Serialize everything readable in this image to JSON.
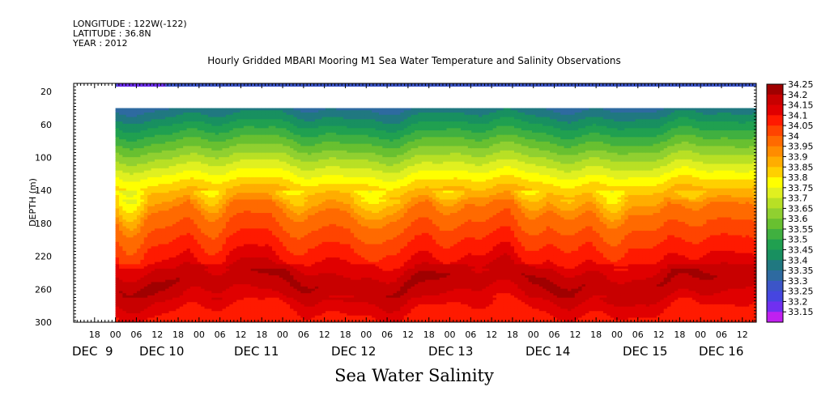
{
  "header": {
    "longitude": "LONGITUDE : 122W(-122)",
    "latitude": "LATITUDE : 36.8N",
    "year": "YEAR : 2012"
  },
  "chart_data": {
    "type": "heatmap",
    "title": "Hourly Gridded MBARI Mooring M1 Sea Water Temperature and Salinity Observations",
    "xlabel": "Sea Water Salinity",
    "ylabel": "DEPTH (m)",
    "ylim": [
      300,
      10
    ],
    "y_reversed": true,
    "yticks": [
      20,
      60,
      100,
      140,
      180,
      220,
      260,
      300
    ],
    "xlim": [
      "2012-12-08 12:00",
      "2012-12-16 16:00"
    ],
    "data_start": "2012-12-09 00:00",
    "hour_ticks": [
      "18",
      "00",
      "06",
      "12",
      "18",
      "00",
      "06",
      "12",
      "18",
      "00",
      "06",
      "12",
      "18",
      "00",
      "06",
      "12",
      "18",
      "00",
      "06",
      "12",
      "18",
      "00",
      "06",
      "12",
      "18",
      "00",
      "06",
      "12",
      "18",
      "00",
      "06",
      "12"
    ],
    "day_labels": [
      "DEC  9",
      "DEC 10",
      "DEC 11",
      "DEC 12",
      "DEC 13",
      "DEC 14",
      "DEC 15",
      "DEC 16"
    ],
    "colorbar_levels": [
      "34.25",
      "34.2",
      "34.15",
      "34.1",
      "34.05",
      "34",
      "33.95",
      "33.9",
      "33.85",
      "33.8",
      "33.75",
      "33.7",
      "33.65",
      "33.6",
      "33.55",
      "33.5",
      "33.45",
      "33.4",
      "33.35",
      "33.3",
      "33.25",
      "33.2",
      "33.15"
    ],
    "colorbar_colors": [
      "#a00000",
      "#c80000",
      "#e00000",
      "#ff1a00",
      "#ff4400",
      "#ff6a00",
      "#ff8c00",
      "#ffad00",
      "#ffd000",
      "#ffff00",
      "#e0f020",
      "#b8e025",
      "#90d030",
      "#68c030",
      "#40b040",
      "#20a050",
      "#189060",
      "#207880",
      "#2e6aa0",
      "#3c55c8",
      "#4646e0",
      "#7030f0",
      "#c020f0"
    ],
    "depth_profile": [
      {
        "depth": 10,
        "salinity": 33.3
      },
      {
        "depth": 40,
        "salinity": 33.4
      },
      {
        "depth": 60,
        "salinity": 33.5
      },
      {
        "depth": 80,
        "salinity": 33.6
      },
      {
        "depth": 100,
        "salinity": 33.7
      },
      {
        "depth": 120,
        "salinity": 33.8
      },
      {
        "depth": 140,
        "salinity": 33.9
      },
      {
        "depth": 160,
        "salinity": 34.0
      },
      {
        "depth": 180,
        "salinity": 34.05
      },
      {
        "depth": 220,
        "salinity": 34.15
      },
      {
        "depth": 250,
        "salinity": 34.25
      },
      {
        "depth": 270,
        "salinity": 34.2
      },
      {
        "depth": 300,
        "salinity": 34.1
      }
    ],
    "missing_depth_range": [
      14,
      40
    ]
  }
}
